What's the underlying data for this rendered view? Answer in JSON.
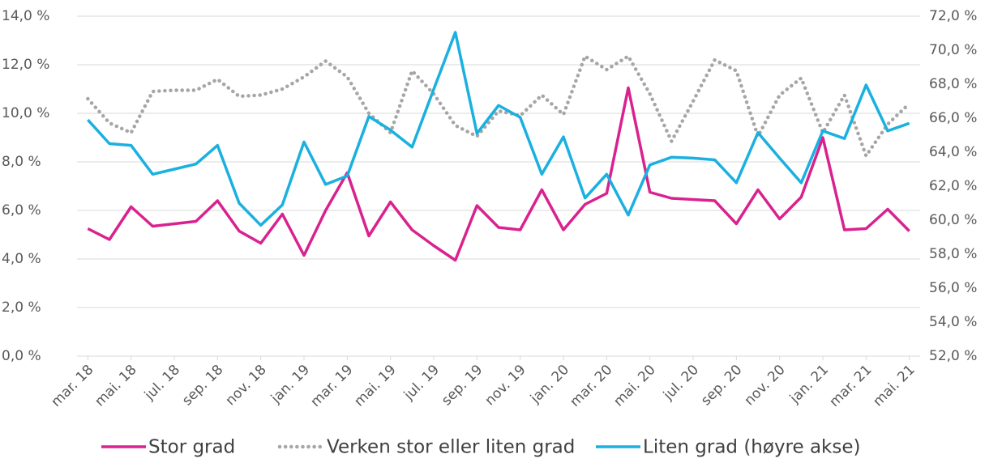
{
  "chart_data": {
    "type": "line",
    "categories": [
      "mar. 18",
      null,
      "mai. 18",
      null,
      "jul. 18",
      null,
      "sep. 18",
      null,
      "nov. 18",
      null,
      "jan. 19",
      null,
      "mar. 19",
      null,
      "mai. 19",
      null,
      "jul. 19",
      null,
      "sep. 19",
      null,
      "nov. 19",
      null,
      "jan. 20",
      null,
      "mar. 20",
      null,
      "mai. 20",
      null,
      "jul. 20",
      null,
      "sep. 20",
      null,
      "nov. 20",
      null,
      "jan. 21",
      null,
      "mar. 21",
      null,
      "mai. 21"
    ],
    "series": [
      {
        "name": "Stor grad",
        "color": "#d9228f",
        "axis": "y",
        "style": "solid",
        "values": [
          5.25,
          4.8,
          6.15,
          5.35,
          5.45,
          5.55,
          6.4,
          5.15,
          4.65,
          5.85,
          4.15,
          6.0,
          7.55,
          4.95,
          6.35,
          5.2,
          4.55,
          3.95,
          6.2,
          5.3,
          5.2,
          6.85,
          5.2,
          6.25,
          6.7,
          11.05,
          6.75,
          6.5,
          6.45,
          6.4,
          5.45,
          6.85,
          5.65,
          6.55,
          9.0,
          5.2,
          5.25,
          6.05,
          5.15
        ]
      },
      {
        "name": "Verken stor eller liten grad",
        "color": "#a6a6a6",
        "axis": "y",
        "style": "dotted",
        "values": [
          10.6,
          9.6,
          9.2,
          10.9,
          10.95,
          10.95,
          11.4,
          10.7,
          10.75,
          11.0,
          11.5,
          12.15,
          11.5,
          10.0,
          9.2,
          11.75,
          10.8,
          9.5,
          9.05,
          10.1,
          9.9,
          10.75,
          9.95,
          12.35,
          11.8,
          12.35,
          10.8,
          8.85,
          10.5,
          12.2,
          11.75,
          9.05,
          10.75,
          11.45,
          9.2,
          10.75,
          8.25,
          9.55,
          10.4
        ]
      },
      {
        "name": "Liten grad (høyre akse)",
        "color": "#1ab0e0",
        "axis": "y2",
        "style": "solid",
        "values": [
          65.9,
          64.5,
          64.4,
          62.7,
          63.0,
          63.3,
          64.4,
          61.0,
          59.7,
          60.9,
          64.6,
          62.1,
          62.6,
          66.1,
          65.3,
          64.3,
          67.7,
          71.05,
          65.1,
          66.75,
          66.05,
          62.7,
          64.9,
          61.3,
          62.7,
          60.3,
          63.25,
          63.7,
          63.65,
          63.55,
          62.2,
          65.15,
          63.65,
          62.2,
          65.25,
          64.8,
          67.95,
          65.25,
          65.7
        ]
      }
    ],
    "ylim": [
      0,
      14
    ],
    "yticks": [
      {
        "value": 0,
        "label": "0,0 %"
      },
      {
        "value": 2,
        "label": "2,0 %"
      },
      {
        "value": 4,
        "label": "4,0 %"
      },
      {
        "value": 6,
        "label": "6,0 %"
      },
      {
        "value": 8,
        "label": "8,0 %"
      },
      {
        "value": 10,
        "label": "10,0 %"
      },
      {
        "value": 12,
        "label": "12,0 %"
      },
      {
        "value": 14,
        "label": "14,0 %"
      }
    ],
    "y2lim": [
      52,
      72
    ],
    "y2ticks": [
      {
        "value": 52,
        "label": "52,0 %"
      },
      {
        "value": 54,
        "label": "54,0 %"
      },
      {
        "value": 56,
        "label": "56,0 %"
      },
      {
        "value": 58,
        "label": "58,0 %"
      },
      {
        "value": 60,
        "label": "60,0 %"
      },
      {
        "value": 62,
        "label": "62,0 %"
      },
      {
        "value": 64,
        "label": "64,0 %"
      },
      {
        "value": 66,
        "label": "66,0 %"
      },
      {
        "value": 68,
        "label": "68,0 %"
      },
      {
        "value": 70,
        "label": "70,0 %"
      },
      {
        "value": 72,
        "label": "72,0 %"
      }
    ],
    "grid": true,
    "legend": "bottom"
  }
}
